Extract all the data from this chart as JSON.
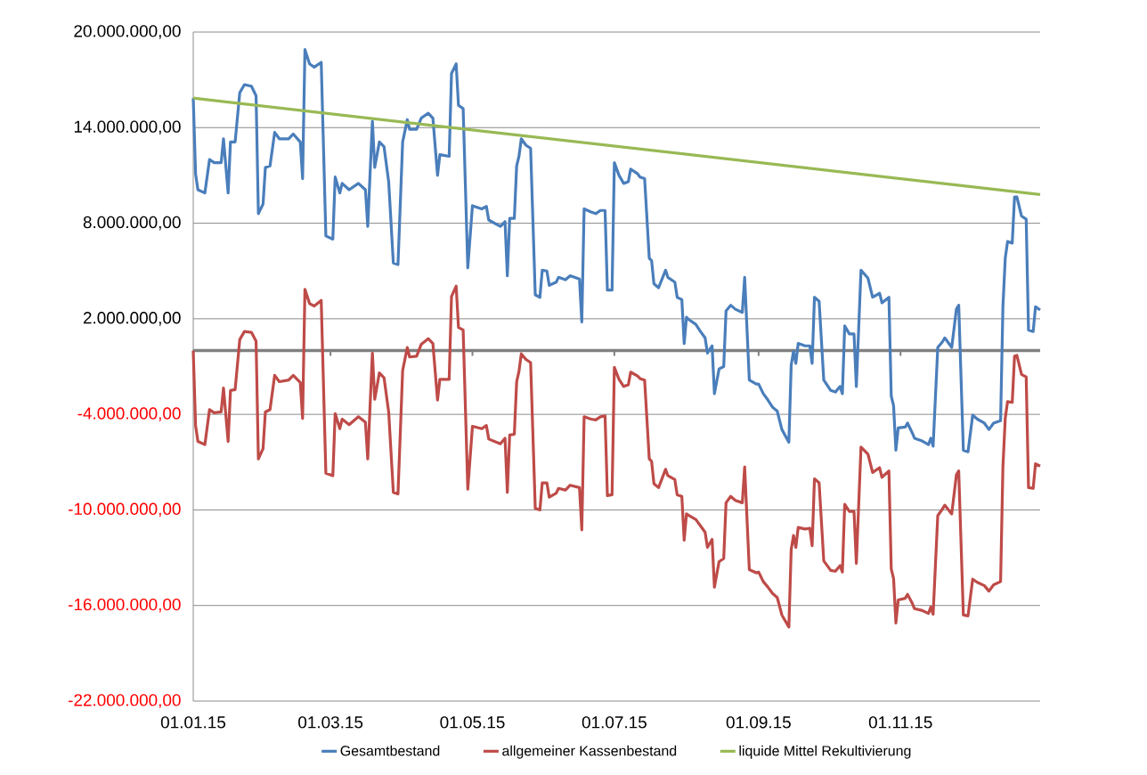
{
  "chart_data": {
    "type": "line",
    "x": [
      "2015-01-01",
      "2015-01-02",
      "2015-01-03",
      "2015-01-06",
      "2015-01-08",
      "2015-01-10",
      "2015-01-13",
      "2015-01-14",
      "2015-01-16",
      "2015-01-17",
      "2015-01-19",
      "2015-01-21",
      "2015-01-23",
      "2015-01-26",
      "2015-01-28",
      "2015-01-29",
      "2015-01-31",
      "2015-02-01",
      "2015-02-03",
      "2015-02-05",
      "2015-02-07",
      "2015-02-11",
      "2015-02-13",
      "2015-02-16",
      "2015-02-17",
      "2015-02-18",
      "2015-02-20",
      "2015-02-22",
      "2015-02-25",
      "2015-02-27",
      "2015-03-02",
      "2015-03-03",
      "2015-03-05",
      "2015-03-06",
      "2015-03-09",
      "2015-03-13",
      "2015-03-16",
      "2015-03-17",
      "2015-03-19",
      "2015-03-20",
      "2015-03-22",
      "2015-03-24",
      "2015-03-26",
      "2015-03-28",
      "2015-03-30",
      "2015-04-01",
      "2015-04-03",
      "2015-04-04",
      "2015-04-07",
      "2015-04-09",
      "2015-04-12",
      "2015-04-14",
      "2015-04-16",
      "2015-04-17",
      "2015-04-21",
      "2015-04-22",
      "2015-04-24",
      "2015-04-25",
      "2015-04-27",
      "2015-04-29",
      "2015-05-01",
      "2015-05-05",
      "2015-05-07",
      "2015-05-08",
      "2015-05-13",
      "2015-05-15",
      "2015-05-16",
      "2015-05-17",
      "2015-05-19",
      "2015-05-20",
      "2015-05-21",
      "2015-05-22",
      "2015-05-24",
      "2015-05-26",
      "2015-05-28",
      "2015-05-30",
      "2015-05-31",
      "2015-06-02",
      "2015-06-03",
      "2015-06-06",
      "2015-06-07",
      "2015-06-10",
      "2015-06-12",
      "2015-06-16",
      "2015-06-17",
      "2015-06-18",
      "2015-06-21",
      "2015-06-23",
      "2015-06-25",
      "2015-06-27",
      "2015-06-28",
      "2015-06-30",
      "2015-07-01",
      "2015-07-03",
      "2015-07-05",
      "2015-07-07",
      "2015-07-08",
      "2015-07-11",
      "2015-07-12",
      "2015-07-14",
      "2015-07-16",
      "2015-07-17",
      "2015-07-18",
      "2015-07-20",
      "2015-07-23",
      "2015-07-24",
      "2015-07-27",
      "2015-07-28",
      "2015-07-30",
      "2015-07-31",
      "2015-08-01",
      "2015-08-02",
      "2015-08-05",
      "2015-08-07",
      "2015-08-09",
      "2015-08-10",
      "2015-08-12",
      "2015-08-13",
      "2015-08-15",
      "2015-08-17",
      "2015-08-18",
      "2015-08-20",
      "2015-08-22",
      "2015-08-25",
      "2015-08-26",
      "2015-08-28",
      "2015-08-31",
      "2015-09-01",
      "2015-09-03",
      "2015-09-05",
      "2015-09-07",
      "2015-09-09",
      "2015-09-11",
      "2015-09-14",
      "2015-09-15",
      "2015-09-16",
      "2015-09-17",
      "2015-09-18",
      "2015-09-21",
      "2015-09-23",
      "2015-09-24",
      "2015-09-25",
      "2015-09-27",
      "2015-09-29",
      "2015-10-02",
      "2015-10-04",
      "2015-10-06",
      "2015-10-07",
      "2015-10-08",
      "2015-10-10",
      "2015-10-12",
      "2015-10-13",
      "2015-10-15",
      "2015-10-18",
      "2015-10-20",
      "2015-10-23",
      "2015-10-24",
      "2015-10-27",
      "2015-10-28",
      "2015-10-29",
      "2015-10-30",
      "2015-10-31",
      "2015-11-03",
      "2015-11-04",
      "2015-11-06",
      "2015-11-07",
      "2015-11-10",
      "2015-11-13",
      "2015-11-14",
      "2015-11-15",
      "2015-11-17",
      "2015-11-19",
      "2015-11-20",
      "2015-11-23",
      "2015-11-25",
      "2015-11-26",
      "2015-11-28",
      "2015-11-30",
      "2015-12-02",
      "2015-12-04",
      "2015-12-07",
      "2015-12-09",
      "2015-12-11",
      "2015-12-14",
      "2015-12-15",
      "2015-12-16",
      "2015-12-17",
      "2015-12-19",
      "2015-12-20",
      "2015-12-21",
      "2015-12-23",
      "2015-12-25",
      "2015-12-26",
      "2015-12-28",
      "2015-12-29",
      "2015-12-31"
    ],
    "series": [
      {
        "name": "Gesamtbestand",
        "color": "#4a7ebb",
        "values": [
          15850000,
          11100000,
          10100000,
          9900000,
          12000000,
          11800000,
          11800000,
          13300000,
          9900000,
          13100000,
          13100000,
          16200000,
          16700000,
          16600000,
          16000000,
          8600000,
          9200000,
          11500000,
          11600000,
          13700000,
          13300000,
          13300000,
          13600000,
          13100000,
          10800000,
          18900000,
          18000000,
          17800000,
          18100000,
          7200000,
          7000000,
          10900000,
          9900000,
          10500000,
          10100000,
          10500000,
          10100000,
          7800000,
          14400000,
          11500000,
          13100000,
          12800000,
          10600000,
          5500000,
          5400000,
          13100000,
          14500000,
          13900000,
          13900000,
          14600000,
          14900000,
          14600000,
          11000000,
          12300000,
          12200000,
          17400000,
          18000000,
          15400000,
          15200000,
          5200000,
          9100000,
          8900000,
          9050000,
          8200000,
          7800000,
          8100000,
          4700000,
          8300000,
          8300000,
          11600000,
          12200000,
          13300000,
          12900000,
          12700000,
          3500000,
          3350000,
          5050000,
          5000000,
          4100000,
          4300000,
          4600000,
          4450000,
          4700000,
          4500000,
          1800000,
          8900000,
          8700000,
          8600000,
          8800000,
          8800000,
          3800000,
          3800000,
          11800000,
          11000000,
          10500000,
          10600000,
          11400000,
          11100000,
          10900000,
          10800000,
          5800000,
          5650000,
          4200000,
          3950000,
          5050000,
          4600000,
          4300000,
          3350000,
          3200000,
          450000,
          2100000,
          1950000,
          1650000,
          1200000,
          800000,
          -150000,
          300000,
          -2700000,
          -1150000,
          -1000000,
          2500000,
          2850000,
          2600000,
          2400000,
          4600000,
          -1850000,
          -2100000,
          -2100000,
          -2700000,
          -3100000,
          -3550000,
          -3800000,
          -4950000,
          -5750000,
          -900000,
          -50000,
          -800000,
          450000,
          300000,
          300000,
          -800000,
          3350000,
          3100000,
          -1850000,
          -2500000,
          -2600000,
          -2250000,
          -2700000,
          1550000,
          1050000,
          1050000,
          -2250000,
          5050000,
          4550000,
          3350000,
          3600000,
          3000000,
          3350000,
          -2850000,
          -3450000,
          -6250000,
          -4850000,
          -4800000,
          -4550000,
          -5150000,
          -5500000,
          -5650000,
          -5900000,
          -5500000,
          -6000000,
          200000,
          550000,
          800000,
          200000,
          2600000,
          2850000,
          -6250000,
          -6350000,
          -4050000,
          -4300000,
          -4550000,
          -4950000,
          -4550000,
          -4400000,
          2750000,
          5800000,
          6850000,
          6750000,
          9650000,
          9650000,
          8450000,
          8250000,
          1300000,
          1200000,
          2750000,
          2550000
        ]
      },
      {
        "name": "allgemeiner Kassenbestand",
        "color": "#be4b48",
        "values": [
          0,
          -4700000,
          -5700000,
          -5900000,
          -3700000,
          -3900000,
          -3850000,
          -2350000,
          -5700000,
          -2500000,
          -2450000,
          700000,
          1200000,
          1150000,
          600000,
          -6800000,
          -6150000,
          -3850000,
          -3700000,
          -1550000,
          -1950000,
          -1850000,
          -1550000,
          -2000000,
          -4250000,
          3850000,
          2950000,
          2800000,
          3150000,
          -7700000,
          -7850000,
          -3950000,
          -4900000,
          -4300000,
          -4650000,
          -4150000,
          -4500000,
          -6800000,
          -150000,
          -3050000,
          -1400000,
          -1700000,
          -3850000,
          -8900000,
          -9000000,
          -1250000,
          200000,
          -400000,
          -350000,
          400000,
          750000,
          450000,
          -3100000,
          -1800000,
          -1800000,
          3400000,
          4050000,
          1450000,
          1300000,
          -8700000,
          -4750000,
          -4900000,
          -4700000,
          -5550000,
          -5850000,
          -5500000,
          -8900000,
          -5300000,
          -5250000,
          -1950000,
          -1300000,
          -200000,
          -550000,
          -750000,
          -9900000,
          -10000000,
          -8300000,
          -8300000,
          -9200000,
          -8950000,
          -8650000,
          -8750000,
          -8450000,
          -8600000,
          -11250000,
          -4150000,
          -4300000,
          -4350000,
          -4150000,
          -4100000,
          -9100000,
          -9050000,
          -1050000,
          -1800000,
          -2250000,
          -2150000,
          -1350000,
          -1600000,
          -1750000,
          -1850000,
          -6800000,
          -6950000,
          -8350000,
          -8600000,
          -7450000,
          -7850000,
          -8100000,
          -9050000,
          -9150000,
          -11900000,
          -10250000,
          -10350000,
          -10600000,
          -11000000,
          -11400000,
          -12350000,
          -11850000,
          -14850000,
          -13250000,
          -13050000,
          -9550000,
          -9150000,
          -9400000,
          -9550000,
          -7300000,
          -13750000,
          -13950000,
          -13900000,
          -14500000,
          -14850000,
          -15250000,
          -15500000,
          -16600000,
          -17350000,
          -12500000,
          -11600000,
          -12350000,
          -11100000,
          -11200000,
          -11150000,
          -12250000,
          -8050000,
          -8300000,
          -13200000,
          -13800000,
          -13850000,
          -13500000,
          -13900000,
          -9650000,
          -10100000,
          -10100000,
          -13350000,
          -6050000,
          -6500000,
          -7650000,
          -7350000,
          -7950000,
          -7550000,
          -13700000,
          -14300000,
          -17100000,
          -15650000,
          -15550000,
          -15300000,
          -15850000,
          -16200000,
          -16300000,
          -16500000,
          -16100000,
          -16550000,
          -10350000,
          -9950000,
          -9700000,
          -10250000,
          -7800000,
          -7550000,
          -16600000,
          -16650000,
          -14350000,
          -14550000,
          -14750000,
          -15100000,
          -14700000,
          -14500000,
          -7300000,
          -4250000,
          -3200000,
          -3250000,
          -350000,
          -300000,
          -1500000,
          -1650000,
          -8600000,
          -8650000,
          -7100000,
          -7250000
        ]
      },
      {
        "name": "liquide Mittel Rekultivierung",
        "color": "#98b954",
        "x": [
          "2015-01-01",
          "2015-12-31"
        ],
        "values": [
          15850000,
          9800000
        ]
      }
    ],
    "xlim": [
      "2015-01-01",
      "2015-12-31"
    ],
    "xticks": [
      {
        "value": "2015-01-01",
        "label": "01.01.15"
      },
      {
        "value": "2015-03-01",
        "label": "01.03.15"
      },
      {
        "value": "2015-05-01",
        "label": "01.05.15"
      },
      {
        "value": "2015-07-01",
        "label": "01.07.15"
      },
      {
        "value": "2015-09-01",
        "label": "01.09.15"
      },
      {
        "value": "2015-11-01",
        "label": "01.11.15"
      }
    ],
    "ylim": [
      -22000000,
      20000000
    ],
    "yticks": [
      {
        "value": -22000000,
        "label": "-22.000.000,00"
      },
      {
        "value": -16000000,
        "label": "-16.000.000,00"
      },
      {
        "value": -10000000,
        "label": "-10.000.000,00"
      },
      {
        "value": -4000000,
        "label": "-4.000.000,00"
      },
      {
        "value": 2000000,
        "label": "2.000.000,00"
      },
      {
        "value": 8000000,
        "label": "8.000.000,00"
      },
      {
        "value": 14000000,
        "label": "14.000.000,00"
      },
      {
        "value": 20000000,
        "label": "20.000.000,00"
      }
    ],
    "grid": "y",
    "legend": "bottom",
    "marker": "none",
    "line_style": "solid"
  }
}
